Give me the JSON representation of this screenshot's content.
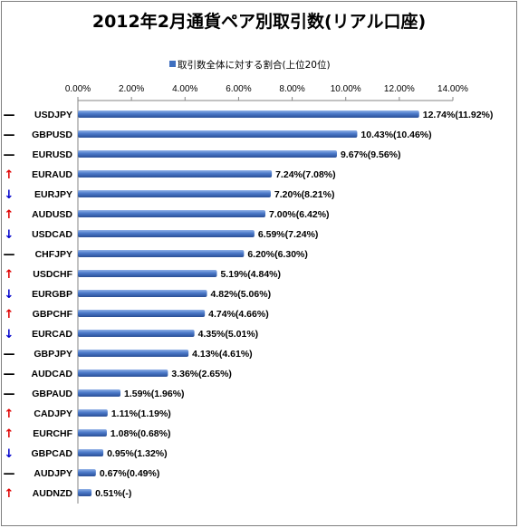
{
  "chart_data": {
    "type": "bar",
    "orientation": "horizontal",
    "title": "2012年2月通貨ペア別取引数(リアル口座)",
    "legend": {
      "label": "取引数全体に対する割合(上位20位)",
      "position": "top"
    },
    "x_ticks": [
      "0.00%",
      "2.00%",
      "4.00%",
      "6.00%",
      "8.00%",
      "10.00%",
      "12.00%",
      "14.00%"
    ],
    "xlim": [
      0,
      14
    ],
    "x_axis_position": "top",
    "grid": false,
    "bar_color": "#3f6fbf",
    "categories": [
      "USDJPY",
      "GBPUSD",
      "EURUSD",
      "EURAUD",
      "EURJPY",
      "AUDUSD",
      "USDCAD",
      "CHFJPY",
      "USDCHF",
      "EURGBP",
      "GBPCHF",
      "EURCAD",
      "GBPJPY",
      "AUDCAD",
      "GBPAUD",
      "CADJPY",
      "EURCHF",
      "GBPCAD",
      "AUDJPY",
      "AUDNZD"
    ],
    "values": [
      12.74,
      10.43,
      9.67,
      7.24,
      7.2,
      7.0,
      6.59,
      6.2,
      5.19,
      4.82,
      4.74,
      4.35,
      4.13,
      3.36,
      1.59,
      1.11,
      1.08,
      0.95,
      0.67,
      0.51
    ],
    "data_labels": [
      "12.74%(11.92%)",
      "10.43%(10.46%)",
      "9.67%(9.56%)",
      "7.24%(7.08%)",
      "7.20%(8.21%)",
      "7.00%(6.42%)",
      "6.59%(7.24%)",
      "6.20%(6.30%)",
      "5.19%(4.84%)",
      "4.82%(5.06%)",
      "4.74%(4.66%)",
      "4.35%(5.01%)",
      "4.13%(4.61%)",
      "3.36%(2.65%)",
      "1.59%(1.96%)",
      "1.11%(1.19%)",
      "1.08%(0.68%)",
      "0.95%(1.32%)",
      "0.67%(0.49%)",
      "0.51%(-)"
    ],
    "trend_markers": [
      "—",
      "—",
      "—",
      "↑",
      "↓",
      "↑",
      "↓",
      "—",
      "↑",
      "↓",
      "↑",
      "↓",
      "—",
      "—",
      "—",
      "↑",
      "↑",
      "↓",
      "—",
      "↑"
    ],
    "trend_colors": {
      "up": "#e00000",
      "down": "#0000cc",
      "flat": "#000000"
    }
  }
}
